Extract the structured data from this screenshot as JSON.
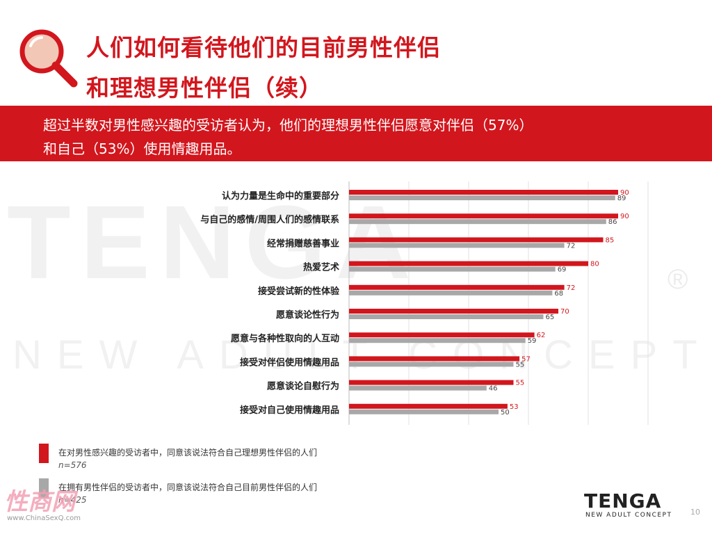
{
  "title": {
    "line1": "人们如何看待他们的目前男性伴侣",
    "line2": "和理想男性伴侣（续）"
  },
  "banner": {
    "line1": "超过半数对男性感兴趣的受访者认为，他们的理想男性伴侣愿意对伴侣（57%）",
    "line2": "和自己（53%）使用情趣用品。"
  },
  "colors": {
    "accent": "#d2161d",
    "grey_series": "#a8a8a8",
    "gridline": "#e2e2e2"
  },
  "chart_data": {
    "type": "bar",
    "orientation": "horizontal",
    "categories": [
      "认为力量是生命中的重要部分",
      "与自己的感情/周围人们的感情联系",
      "经常捐赠慈善事业",
      "热爱艺术",
      "接受尝试新的性体验",
      "愿意谈论性行为",
      "愿意与各种性取向的人互动",
      "接受对伴侣使用情趣用品",
      "愿意谈论自慰行为",
      "接受对自己使用情趣用品"
    ],
    "series": [
      {
        "name": "在对男性感兴趣的受访者中，同意该说法符合自己理想男性伴侣的人们",
        "color": "#d2161d",
        "values": [
          90,
          90,
          85,
          80,
          72,
          70,
          62,
          57,
          55,
          53
        ]
      },
      {
        "name": "在拥有男性伴侣的受访者中，同意该说法符合自己目前男性伴侣的人们",
        "color": "#a8a8a8",
        "values": [
          89,
          86,
          72,
          69,
          68,
          65,
          59,
          55,
          46,
          50
        ]
      }
    ],
    "xlim": [
      0,
      100
    ],
    "grid": true,
    "legend_position": "bottom-left"
  },
  "legend": [
    {
      "label": "在对男性感兴趣的受访者中，同意该说法符合自己理想男性伴侣的人们",
      "n": "n=576"
    },
    {
      "label": "在拥有男性伴侣的受访者中，同意该说法符合自己目前男性伴侣的人们",
      "n": "n=425"
    }
  ],
  "watermark": {
    "logo": "TENGA",
    "tagline": "NEW ADULT CONCEPT",
    "registered": "®"
  },
  "brand": {
    "logo": "TENGA",
    "tagline": "NEW ADULT CONCEPT"
  },
  "page_number": "10",
  "site_mark": {
    "main": "性商网",
    "sub": "www.ChinaSexQ.com"
  }
}
